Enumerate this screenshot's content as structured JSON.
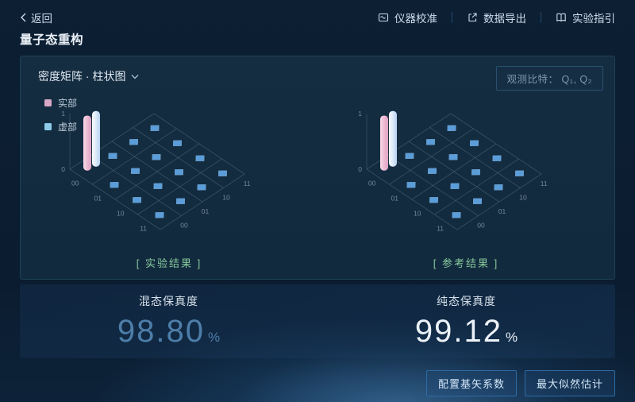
{
  "topbar": {
    "back_label": "返回",
    "actions": [
      {
        "label": "仪器校准",
        "icon": "calibration-icon"
      },
      {
        "label": "数据导出",
        "icon": "export-icon"
      },
      {
        "label": "实验指引",
        "icon": "guide-icon"
      }
    ]
  },
  "page_title": "量子态重构",
  "chart_panel": {
    "view_selector_label": "密度矩阵 · 柱状图",
    "qubits_label": "观测比特：",
    "qubits_value": "Q₁, Q₂",
    "legend": [
      {
        "label": "实部",
        "color": "#d9a8c6"
      },
      {
        "label": "虚部",
        "color": "#8ecbe8"
      }
    ]
  },
  "chart_data": [
    {
      "type": "bar3d",
      "caption": "[ 实验结果 ]",
      "x_categories": [
        "00",
        "01",
        "10",
        "11"
      ],
      "y_categories": [
        "00",
        "01",
        "10",
        "11"
      ],
      "z_ticks": [
        "1",
        "0"
      ],
      "z_range": [
        0,
        1
      ],
      "series": [
        {
          "name": "实部",
          "color": "#e9b9d0",
          "points": [
            {
              "x": "00",
              "y": "00",
              "z": 0.99
            }
          ]
        },
        {
          "name": "虚部",
          "color": "#cfe2f6",
          "points": [
            {
              "x": "00",
              "y": "00",
              "z": 1.0
            }
          ]
        }
      ],
      "other_cells_value": 0
    },
    {
      "type": "bar3d",
      "caption": "[ 参考结果 ]",
      "x_categories": [
        "00",
        "01",
        "10",
        "11"
      ],
      "y_categories": [
        "00",
        "01",
        "10",
        "11"
      ],
      "z_ticks": [
        "1",
        "0"
      ],
      "z_range": [
        0,
        1
      ],
      "series": [
        {
          "name": "实部",
          "color": "#e9b9d0",
          "points": [
            {
              "x": "00",
              "y": "00",
              "z": 0.99
            }
          ]
        },
        {
          "name": "虚部",
          "color": "#cfe2f6",
          "points": [
            {
              "x": "00",
              "y": "00",
              "z": 1.0
            }
          ]
        }
      ],
      "other_cells_value": 0
    }
  ],
  "fidelity": [
    {
      "label": "混态保真度",
      "value": "98.80",
      "unit": "%",
      "color": "#4d7ea9"
    },
    {
      "label": "纯态保真度",
      "value": "99.12",
      "unit": "%",
      "color": "#ecf2f8"
    }
  ],
  "footer": {
    "buttons": [
      {
        "label": "配置基矢系数"
      },
      {
        "label": "最大似然估计"
      }
    ]
  }
}
